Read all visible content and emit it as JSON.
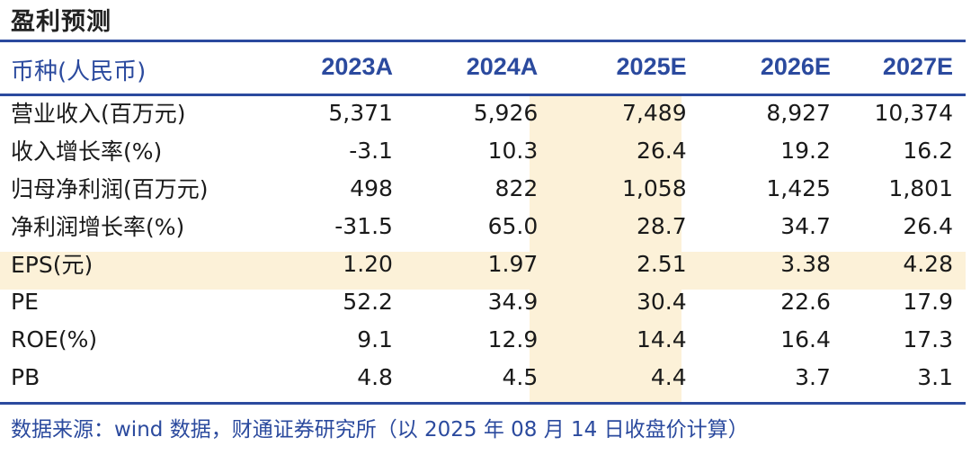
{
  "title": "盈利预测",
  "colors": {
    "accent": "#2b4a9e",
    "highlight": "#fcf1d8",
    "text": "#1a1a1a"
  },
  "table": {
    "header": {
      "label": "币种(人民币)",
      "years": [
        "2023A",
        "2024A",
        "2025E",
        "2026E",
        "2027E"
      ]
    },
    "rows": [
      {
        "label": "营业收入(百万元)",
        "values": [
          "5,371",
          "5,926",
          "7,489",
          "8,927",
          "10,374"
        ]
      },
      {
        "label": "收入增长率(%)",
        "values": [
          "-3.1",
          "10.3",
          "26.4",
          "19.2",
          "16.2"
        ]
      },
      {
        "label": "归母净利润(百万元)",
        "values": [
          "498",
          "822",
          "1,058",
          "1,425",
          "1,801"
        ]
      },
      {
        "label": "净利润增长率(%)",
        "values": [
          "-31.5",
          "65.0",
          "28.7",
          "34.7",
          "26.4"
        ]
      },
      {
        "label": "EPS(元)",
        "values": [
          "1.20",
          "1.97",
          "2.51",
          "3.38",
          "4.28"
        ]
      },
      {
        "label": "PE",
        "values": [
          "52.2",
          "34.9",
          "30.4",
          "22.6",
          "17.9"
        ]
      },
      {
        "label": "ROE(%)",
        "values": [
          "9.1",
          "12.9",
          "14.4",
          "16.4",
          "17.3"
        ]
      },
      {
        "label": "PB",
        "values": [
          "4.8",
          "4.5",
          "4.4",
          "3.7",
          "3.1"
        ]
      }
    ]
  },
  "source": "数据来源：wind 数据，财通证券研究所（以 2025 年 08 月 14 日收盘价计算）"
}
